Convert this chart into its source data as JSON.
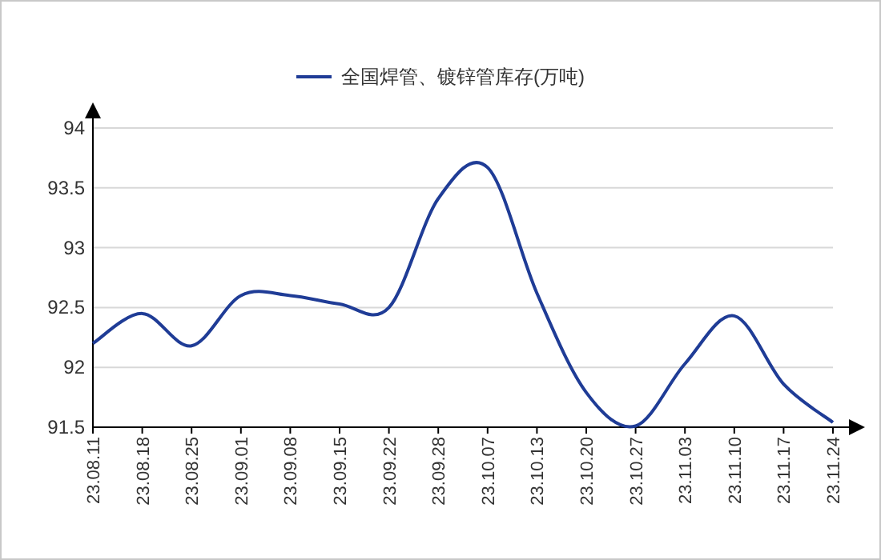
{
  "chart_data": {
    "type": "line",
    "categories": [
      "23.08.11",
      "23.08.18",
      "23.08.25",
      "23.09.01",
      "23.09.08",
      "23.09.15",
      "23.09.22",
      "23.09.28",
      "23.10.07",
      "23.10.13",
      "23.10.20",
      "23.10.27",
      "23.11.03",
      "23.11.10",
      "23.11.17",
      "23.11.24"
    ],
    "series": [
      {
        "name": "全国焊管、镀锌管库存(万吨)",
        "color": "#1f3c96",
        "values": [
          92.2,
          92.45,
          92.18,
          92.6,
          92.6,
          92.53,
          92.5,
          93.41,
          93.67,
          92.62,
          91.79,
          91.51,
          92.03,
          92.43,
          91.86,
          91.54
        ]
      }
    ],
    "ylim": [
      91.5,
      94
    ],
    "yticks": [
      91.5,
      92,
      92.5,
      93,
      93.5,
      94
    ],
    "grid": "y",
    "legend": "top",
    "marker": "none",
    "line_style": "solid"
  }
}
